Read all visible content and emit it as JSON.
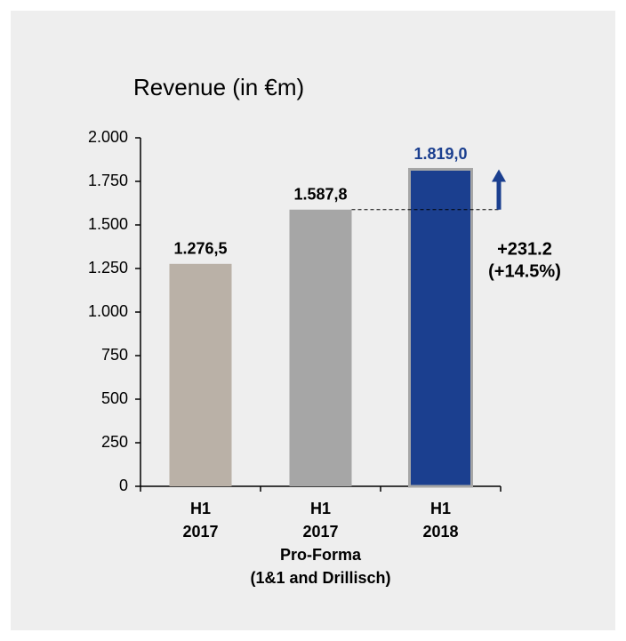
{
  "chart_data": {
    "type": "bar",
    "title": "Revenue (in €m)",
    "categories": [
      [
        "H1",
        "2017"
      ],
      [
        "H1",
        "2017",
        "Pro-Forma",
        "(1&1 and Drillisch)"
      ],
      [
        "H1",
        "2018"
      ]
    ],
    "values": [
      1276.5,
      1587.8,
      1819.0
    ],
    "value_labels": [
      "1.276,5",
      "1.587,8",
      "1.819,0"
    ],
    "colors": [
      "#bab1a7",
      "#a6a6a6",
      "#1b3f8f"
    ],
    "value_label_colors": [
      "#000000",
      "#000000",
      "#1b3f8f"
    ],
    "ylim": [
      0,
      2000
    ],
    "yticks": [
      0,
      250,
      500,
      750,
      {
        "value": 1000,
        "label": "1.000"
      },
      {
        "value": 1250,
        "label": "1.250"
      },
      {
        "value": 1500,
        "label": "1.500"
      },
      {
        "value": 1750,
        "label": "1.750"
      },
      {
        "value": 2000,
        "label": "2.000"
      }
    ],
    "annotation": [
      "+231.2",
      "(+14.5%)"
    ]
  }
}
